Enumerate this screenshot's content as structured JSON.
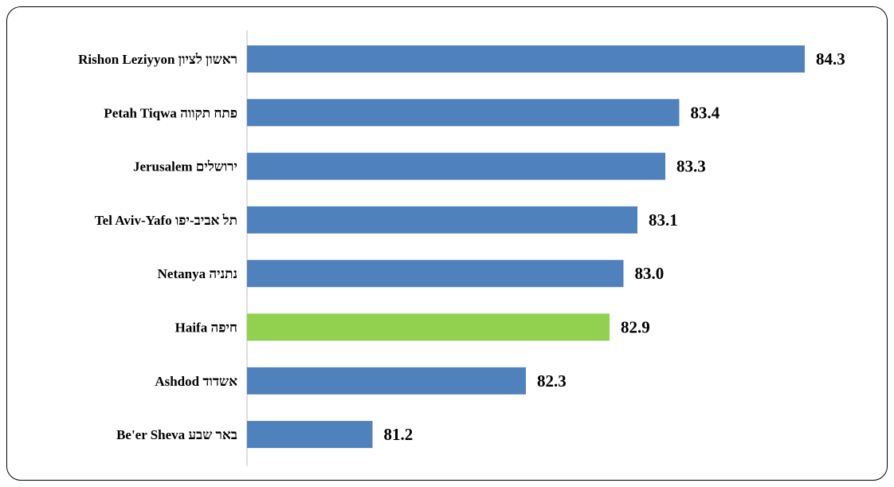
{
  "chart_data": {
    "type": "bar",
    "orientation": "horizontal",
    "categories": [
      "Rishon Leziyyon ראשון לציון",
      "Petah Tiqwa פתח תקווה",
      "Jerusalem ירושלים",
      "Tel Aviv-Yafo תל אביב-יפו",
      "Netanya נתניה",
      "Haifa חיפה",
      "Ashdod אשדוד",
      "Be'er Sheva באר שבע"
    ],
    "values": [
      84.3,
      83.4,
      83.3,
      83.1,
      83.0,
      82.9,
      82.3,
      81.2
    ],
    "value_labels": [
      "84.3",
      "83.4",
      "83.3",
      "83.1",
      "83.0",
      "82.9",
      "82.3",
      "81.2"
    ],
    "bar_colors": [
      "#4f81bd",
      "#4f81bd",
      "#4f81bd",
      "#4f81bd",
      "#4f81bd",
      "#92d050",
      "#4f81bd",
      "#4f81bd"
    ],
    "xlim": [
      80.3,
      84.3
    ],
    "grid": false,
    "legend": "none"
  }
}
